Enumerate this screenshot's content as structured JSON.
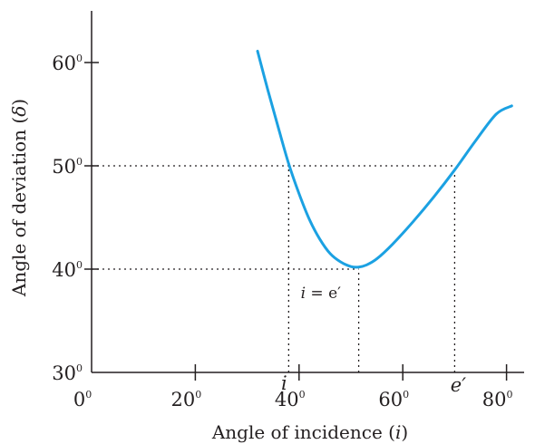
{
  "chart_data": {
    "type": "line",
    "title": "",
    "xlabel": "Angle of incidence",
    "xlabel_symbol": "i",
    "ylabel": "Angle of deviation",
    "ylabel_symbol": "δ",
    "degree_mark": "0",
    "xlim": [
      0,
      90
    ],
    "ylim": [
      30,
      65
    ],
    "x_ticks": [
      0,
      20,
      40,
      60,
      80
    ],
    "y_ticks": [
      30,
      40,
      50,
      60
    ],
    "grid": false,
    "series": [
      {
        "color": "#1ba1e2",
        "x": [
          32,
          34,
          36,
          38,
          40,
          42,
          44,
          46,
          48,
          50,
          51.5,
          53,
          55,
          58,
          62,
          66,
          70,
          74,
          78,
          81
        ],
        "y": [
          61.1,
          57.3,
          53.7,
          50.2,
          47.3,
          44.8,
          42.9,
          41.5,
          40.7,
          40.25,
          40.2,
          40.4,
          41,
          42.4,
          44.6,
          47,
          49.6,
          52.4,
          55,
          55.8
        ]
      }
    ],
    "reference_lines": [
      {
        "from": [
          0,
          50
        ],
        "to": [
          70,
          50
        ]
      },
      {
        "from": [
          0,
          40
        ],
        "to": [
          51.5,
          40
        ]
      },
      {
        "from": [
          38,
          30
        ],
        "to": [
          38,
          50
        ]
      },
      {
        "from": [
          51.5,
          30
        ],
        "to": [
          51.5,
          40
        ]
      },
      {
        "from": [
          70,
          30
        ],
        "to": [
          70,
          50
        ]
      }
    ],
    "annotations": {
      "i_mark": "i",
      "e_mark": "e′",
      "min_label_left": "i",
      "min_label_right": " = e′"
    }
  }
}
